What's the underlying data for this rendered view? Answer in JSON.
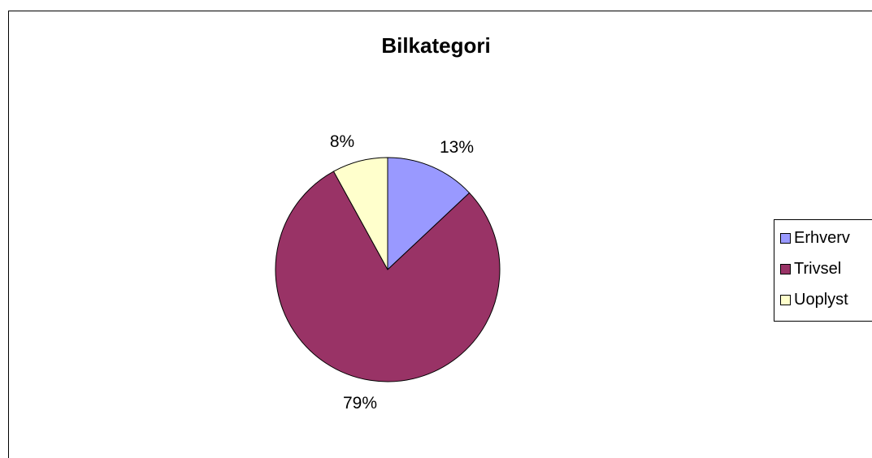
{
  "chart_data": {
    "type": "pie",
    "title": "Bilkategori",
    "slices": [
      {
        "label": "Erhverv",
        "value": 13,
        "display": "13%",
        "color": "#9999ff"
      },
      {
        "label": "Trivsel",
        "value": 79,
        "display": "79%",
        "color": "#993366"
      },
      {
        "label": "Uoplyst",
        "value": 8,
        "display": "8%",
        "color": "#ffffcc"
      }
    ],
    "legend_position": "right"
  }
}
